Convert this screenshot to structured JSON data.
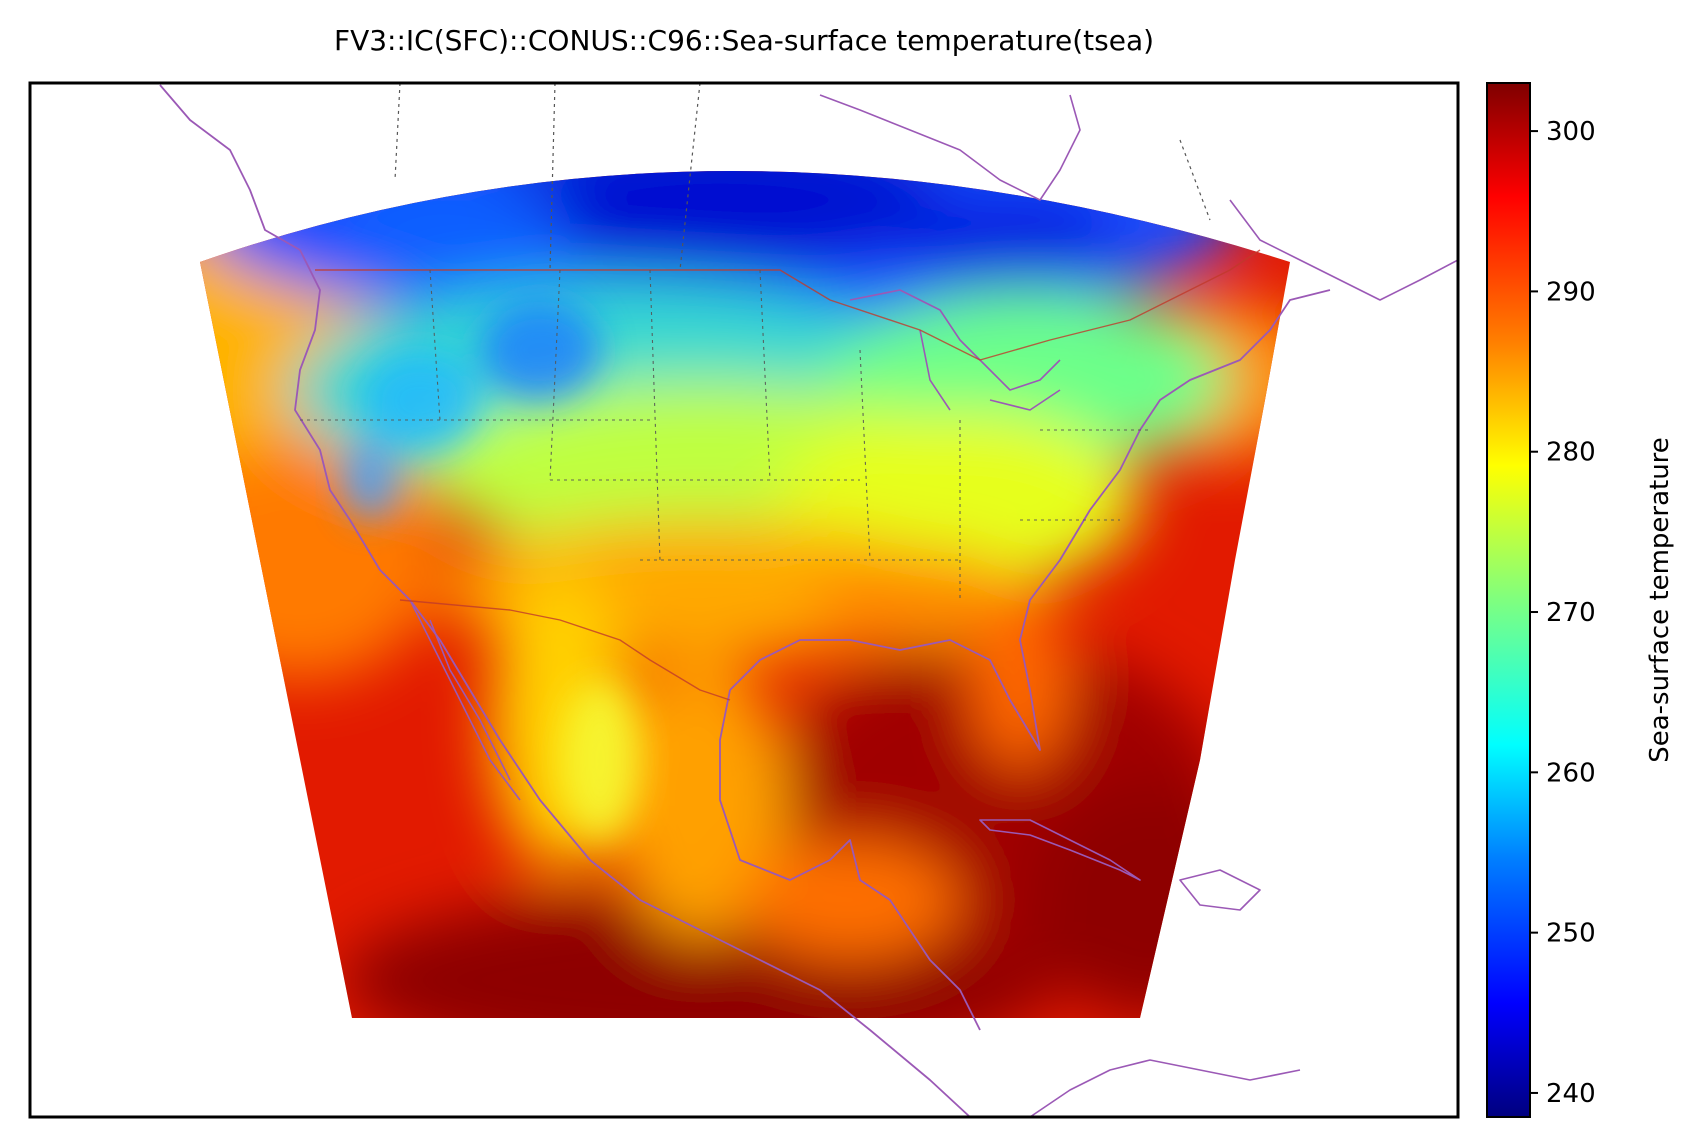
{
  "title": "FV3::IC(SFC)::CONUS::C96::Sea-surface temperature(tsea)",
  "colorbar": {
    "label": "Sea-surface temperature",
    "min": 238.5,
    "max": 303.0,
    "ticks": [
      "240",
      "250",
      "260",
      "270",
      "280",
      "290",
      "300"
    ],
    "colormap": "jet",
    "colors": [
      "#00007f",
      "#0000ff",
      "#007fff",
      "#00ffff",
      "#7fff7f",
      "#ffff00",
      "#ff7f00",
      "#ff0000",
      "#7f0000"
    ]
  },
  "map": {
    "region": "CONUS",
    "features": [
      "coastlines",
      "country-borders",
      "state-borders",
      "lakes"
    ],
    "coastline_color": "#9b59b6",
    "border_color": "#e74c3c",
    "state_border_color": "#666666"
  }
}
